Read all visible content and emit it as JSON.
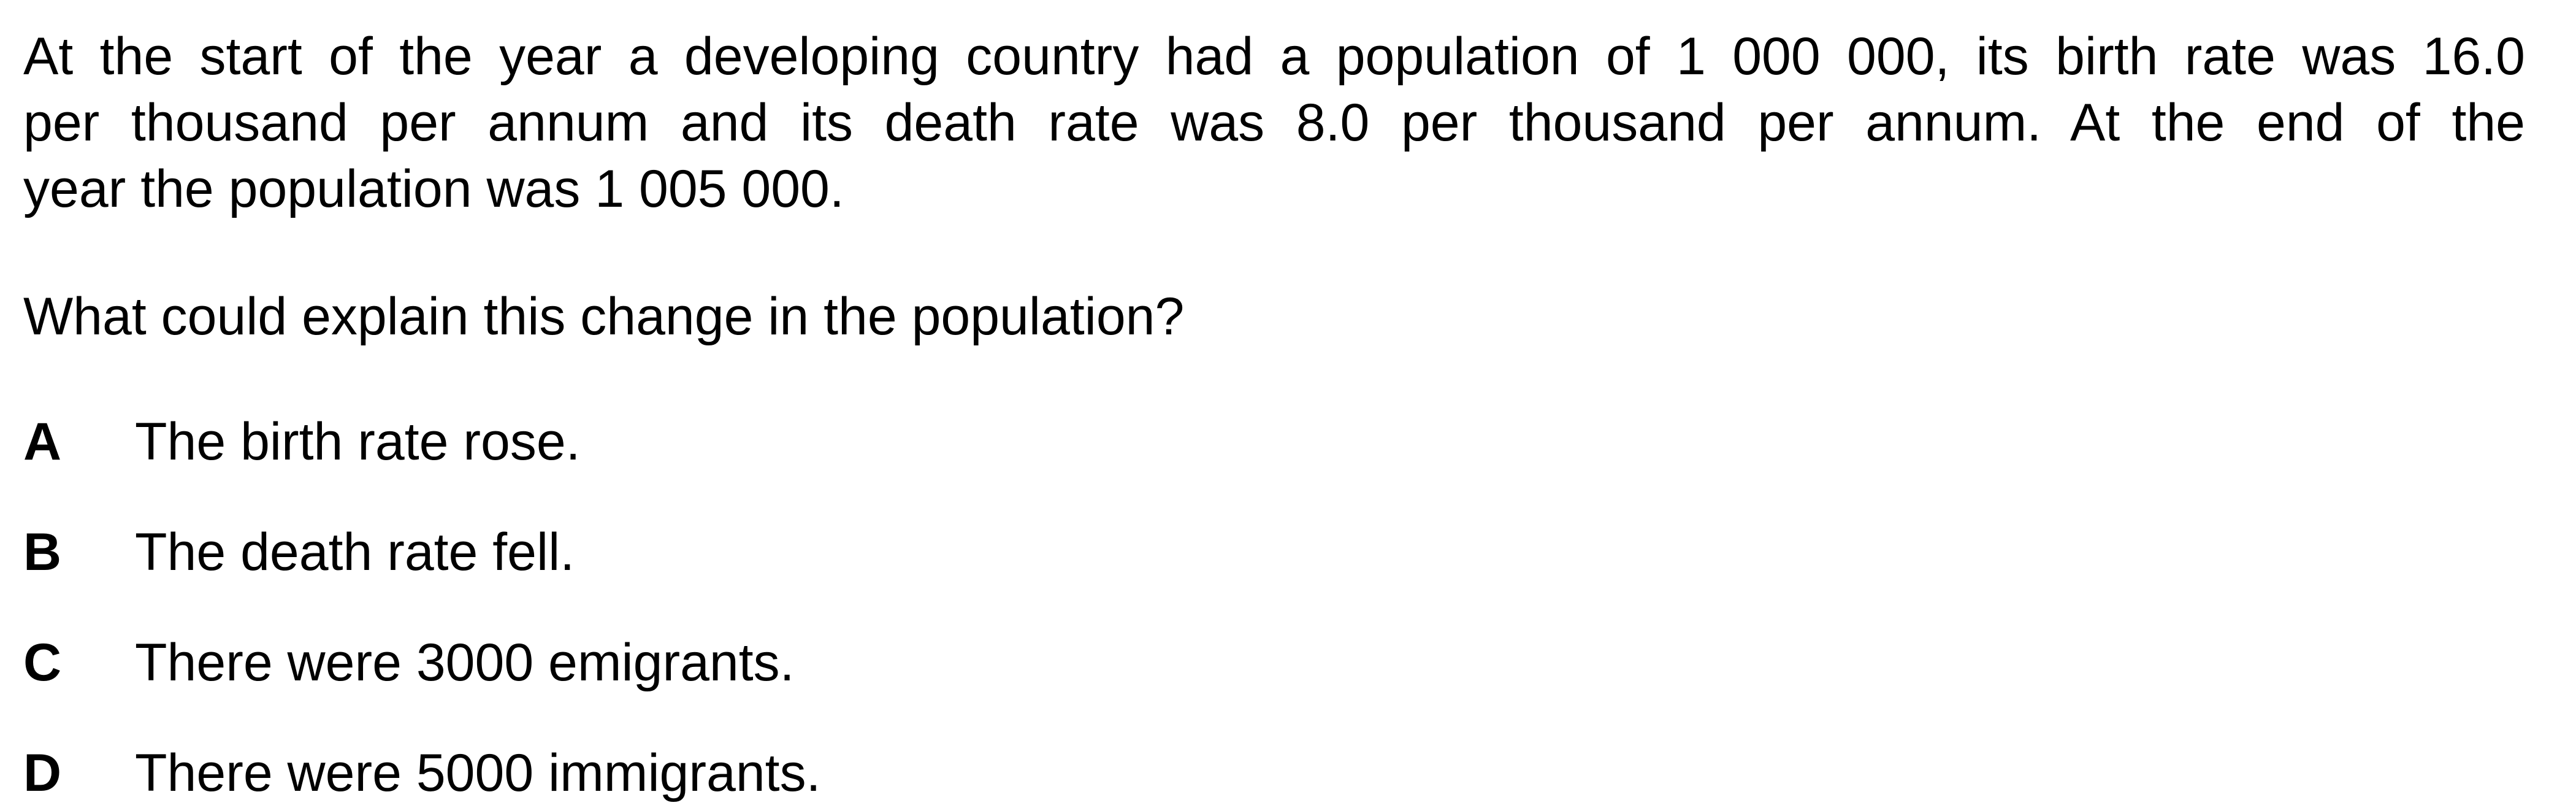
{
  "stem": {
    "lines": [
      "At the start of the year a developing country had a population of 1 000 000, its birth rate was 16.0",
      "per thousand per annum and its death rate was 8.0 per thousand per annum. At the end of the",
      "year the population was 1 005 000."
    ]
  },
  "question": "What could explain this change in the population?",
  "options": [
    {
      "letter": "A",
      "text": "The birth rate rose."
    },
    {
      "letter": "B",
      "text": "The death rate fell."
    },
    {
      "letter": "C",
      "text": "There were 3000 emigrants."
    },
    {
      "letter": "D",
      "text": "There were 5000 immigrants."
    }
  ]
}
